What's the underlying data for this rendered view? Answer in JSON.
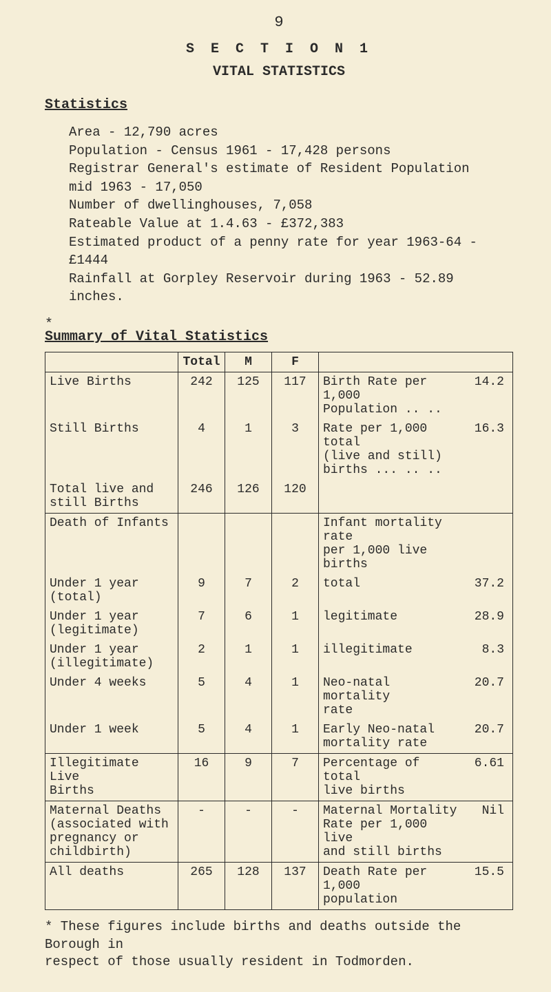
{
  "page_number": "9",
  "section_line": "S E C T I O N   1",
  "subtitle": "VITAL  STATISTICS",
  "stats_heading": "Statistics",
  "body_lines": "Area - 12,790 acres\nPopulation - Census 1961 - 17,428 persons\nRegistrar General's estimate of Resident Population\n        mid 1963 - 17,050\nNumber of dwellinghouses, 7,058\nRateable Value at 1.4.63 - £372,383\nEstimated product of a penny rate for year 1963-64 - £1444\nRainfall at Gorpley Reservoir during 1963 - 52.89 inches.",
  "asterisk": "*",
  "summary_heading": {
    "pre": "Summary",
    "rest": " of Vital Statistics"
  },
  "table": {
    "head": {
      "c1": "",
      "c2": "Total",
      "c3": "M",
      "c4": "F",
      "c5": ""
    },
    "rows": [
      {
        "label": "Live Births",
        "t": "242",
        "m": "125",
        "f": "117",
        "desc": "Birth Rate per 1,000\n  Population ..   ..",
        "val": "14.2",
        "bt": true,
        "bb": false
      },
      {
        "label": "Still Births",
        "t": "4",
        "m": "1",
        "f": "3",
        "desc": "Rate per 1,000 total\n  (live and still)\n  births ...  ..   ..",
        "val": "16.3",
        "bt": false,
        "bb": false
      },
      {
        "label": "Total live and\n  still Births",
        "t": "246",
        "m": "126",
        "f": "120",
        "desc": "",
        "val": "",
        "bt": false,
        "bb": true
      },
      {
        "label": "Death of Infants",
        "t": "",
        "m": "",
        "f": "",
        "desc": "Infant mortality rate\n  per 1,000 live births",
        "val": "",
        "bt": true,
        "bb": false
      },
      {
        "label": "Under 1 year\n  (total)",
        "t": "9",
        "m": "7",
        "f": "2",
        "desc": "        total",
        "val": "37.2",
        "bt": false,
        "bb": false
      },
      {
        "label": "Under 1 year\n  (legitimate)",
        "t": "7",
        "m": "6",
        "f": "1",
        "desc": "        legitimate",
        "val": "28.9",
        "bt": false,
        "bb": false
      },
      {
        "label": "Under 1 year\n  (illegitimate)",
        "t": "2",
        "m": "1",
        "f": "1",
        "desc": "        illegitimate",
        "val": "8.3",
        "bt": false,
        "bb": false
      },
      {
        "label": "Under 4 weeks",
        "t": "5",
        "m": "4",
        "f": "1",
        "desc": "Neo-natal mortality\n        rate",
        "val": "20.7",
        "bt": false,
        "bb": false
      },
      {
        "label": "Under 1 week",
        "t": "5",
        "m": "4",
        "f": "1",
        "desc": "Early Neo-natal\n  mortality rate",
        "val": "20.7",
        "bt": false,
        "bb": true
      },
      {
        "label": "Illegitimate Live\n  Births",
        "t": "16",
        "m": "9",
        "f": "7",
        "desc": "Percentage of total\n  live births",
        "val": "6.61",
        "bt": true,
        "bb": true
      },
      {
        "label": "Maternal Deaths\n(associated with\npregnancy or\nchildbirth)",
        "t": "-",
        "m": "-",
        "f": "-",
        "desc": "Maternal Mortality\nRate per 1,000 live\nand still births",
        "val": "Nil",
        "bt": true,
        "bb": true
      },
      {
        "label": "All deaths",
        "t": "265",
        "m": "128",
        "f": "137",
        "desc": "Death Rate per 1,000\n  population",
        "val": "15.5",
        "bt": true,
        "bb": true
      }
    ]
  },
  "footnote": "* These figures include births and deaths outside the Borough in\n  respect of those usually resident in Todmorden.",
  "colors": {
    "bg": "#f5eed8",
    "ink": "#2a2a2a"
  }
}
